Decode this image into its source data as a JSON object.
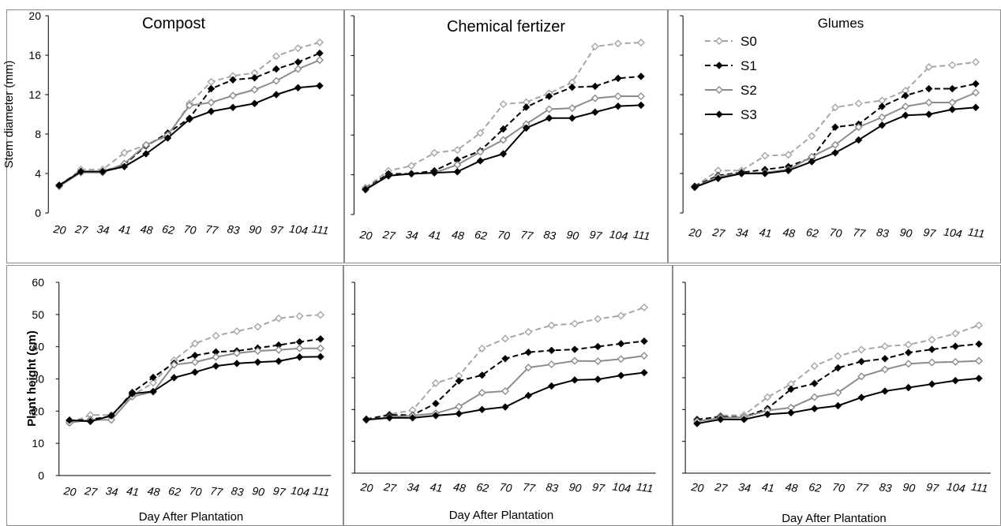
{
  "figure": {
    "x_axis_label": "Day After Plantation",
    "legend": [
      {
        "name": "S0",
        "color": "#a6a6a6",
        "dash": true,
        "marker": "diamond-open"
      },
      {
        "name": "S1",
        "color": "#000000",
        "dash": true,
        "marker": "diamond"
      },
      {
        "name": "S2",
        "color": "#8c8c8c",
        "dash": false,
        "marker": "diamond-open"
      },
      {
        "name": "S3",
        "color": "#000000",
        "dash": false,
        "marker": "diamond"
      }
    ]
  },
  "chart_data": [
    {
      "type": "line",
      "title": "Compost",
      "xlabel": "",
      "ylabel": "Stem diameter (mm)",
      "ylim": [
        0,
        20
      ],
      "yticks": [
        0,
        4,
        8,
        12,
        16,
        20
      ],
      "categories": [
        "20",
        "27",
        "34",
        "41",
        "48",
        "62",
        "70",
        "77",
        "83",
        "90",
        "97",
        "104",
        "111"
      ],
      "series": [
        {
          "name": "S0",
          "values": [
            2.8,
            4.4,
            4.4,
            6.1,
            6.9,
            7.8,
            11.1,
            13.3,
            13.9,
            14.2,
            15.9,
            16.7,
            17.3
          ]
        },
        {
          "name": "S1",
          "values": [
            2.8,
            4.2,
            4.2,
            4.9,
            6.8,
            8.1,
            9.6,
            12.6,
            13.5,
            13.7,
            14.6,
            15.3,
            16.2
          ]
        },
        {
          "name": "S2",
          "values": [
            2.7,
            4.1,
            4.1,
            5.0,
            6.9,
            7.9,
            10.9,
            11.2,
            11.9,
            12.5,
            13.4,
            14.6,
            15.5
          ]
        },
        {
          "name": "S3",
          "values": [
            2.8,
            4.2,
            4.2,
            4.7,
            6.0,
            7.6,
            9.5,
            10.3,
            10.7,
            11.1,
            12.0,
            12.7,
            12.9
          ]
        }
      ]
    },
    {
      "type": "line",
      "title": "Chemical fertizer",
      "xlabel": "",
      "ylabel": "",
      "ylim": [
        0,
        20
      ],
      "yticks": [
        0,
        4,
        8,
        12,
        16,
        20
      ],
      "categories": [
        "20",
        "27",
        "34",
        "41",
        "48",
        "62",
        "70",
        "77",
        "83",
        "90",
        "97",
        "104",
        "111"
      ],
      "series": [
        {
          "name": "S0",
          "values": [
            2.7,
            4.4,
            4.9,
            6.2,
            6.5,
            8.2,
            11.1,
            11.3,
            12.2,
            13.3,
            16.9,
            17.2,
            17.3
          ]
        },
        {
          "name": "S1",
          "values": [
            2.6,
            4.1,
            4.1,
            4.4,
            5.5,
            6.4,
            8.6,
            10.8,
            11.9,
            12.8,
            12.9,
            13.7,
            13.9
          ]
        },
        {
          "name": "S2",
          "values": [
            2.6,
            3.9,
            4.1,
            4.2,
            5.0,
            6.3,
            7.5,
            9.1,
            10.6,
            10.7,
            11.7,
            11.9,
            11.9
          ]
        },
        {
          "name": "S3",
          "values": [
            2.5,
            3.9,
            4.1,
            4.2,
            4.3,
            5.4,
            6.1,
            8.7,
            9.7,
            9.7,
            10.3,
            10.9,
            11.0
          ]
        }
      ]
    },
    {
      "type": "line",
      "title": "Glumes",
      "xlabel": "",
      "ylabel": "",
      "ylim": [
        0,
        20
      ],
      "yticks": [
        0,
        4,
        8,
        12,
        16,
        20
      ],
      "categories": [
        "20",
        "27",
        "34",
        "41",
        "48",
        "62",
        "70",
        "77",
        "83",
        "90",
        "97",
        "104",
        "111"
      ],
      "series": [
        {
          "name": "S0",
          "values": [
            2.7,
            4.3,
            4.3,
            5.8,
            5.9,
            7.8,
            10.7,
            11.1,
            11.4,
            12.4,
            14.8,
            15.0,
            15.3
          ]
        },
        {
          "name": "S1",
          "values": [
            2.7,
            3.8,
            4.1,
            4.4,
            4.7,
            5.6,
            8.7,
            9.0,
            10.8,
            11.9,
            12.6,
            12.6,
            13.1
          ]
        },
        {
          "name": "S2",
          "values": [
            2.6,
            3.7,
            4.0,
            4.1,
            4.4,
            5.7,
            6.9,
            8.7,
            9.7,
            10.8,
            11.2,
            11.2,
            12.2
          ]
        },
        {
          "name": "S3",
          "values": [
            2.6,
            3.5,
            4.0,
            4.0,
            4.3,
            5.2,
            6.1,
            7.4,
            8.9,
            9.9,
            10.0,
            10.5,
            10.7
          ]
        }
      ]
    },
    {
      "type": "line",
      "title": "",
      "xlabel": "Day After Plantation",
      "ylabel": "Plant height (cm)",
      "ylim": [
        0,
        60
      ],
      "yticks": [
        0,
        10,
        20,
        30,
        40,
        50,
        60
      ],
      "categories": [
        "20",
        "27",
        "34",
        "41",
        "48",
        "62",
        "70",
        "77",
        "83",
        "90",
        "97",
        "104",
        "111"
      ],
      "series": [
        {
          "name": "S0",
          "values": [
            16.3,
            18.8,
            18.8,
            24.8,
            28.8,
            35.8,
            41.0,
            43.4,
            44.8,
            46.2,
            48.8,
            49.5,
            49.9
          ]
        },
        {
          "name": "S1",
          "values": [
            17.0,
            17.4,
            18.4,
            25.8,
            30.5,
            34.9,
            37.3,
            38.4,
            38.7,
            39.6,
            40.5,
            41.5,
            42.4
          ]
        },
        {
          "name": "S2",
          "values": [
            16.4,
            17.3,
            17.3,
            24.5,
            26.0,
            34.4,
            35.2,
            36.8,
            38.0,
            38.7,
            39.0,
            39.5,
            39.5
          ]
        },
        {
          "name": "S3",
          "values": [
            17.2,
            16.8,
            18.6,
            25.4,
            26.1,
            30.4,
            32.1,
            34.0,
            34.8,
            35.2,
            35.5,
            36.8,
            36.9
          ]
        }
      ]
    },
    {
      "type": "line",
      "title": "",
      "xlabel": "Day After Plantation",
      "ylabel": "",
      "ylim": [
        0,
        60
      ],
      "yticks": [
        0,
        10,
        20,
        30,
        40,
        50,
        60
      ],
      "categories": [
        "20",
        "27",
        "34",
        "41",
        "48",
        "62",
        "70",
        "77",
        "83",
        "90",
        "97",
        "104",
        "111"
      ],
      "series": [
        {
          "name": "S0",
          "values": [
            16.8,
            18.5,
            19.8,
            28.3,
            30.6,
            39.2,
            42.3,
            44.4,
            46.5,
            47.0,
            48.5,
            49.5,
            52.1
          ]
        },
        {
          "name": "S1",
          "values": [
            17.0,
            18.3,
            18.3,
            21.9,
            29.0,
            30.8,
            36.0,
            38.0,
            38.6,
            38.9,
            39.8,
            40.7,
            41.5
          ]
        },
        {
          "name": "S2",
          "values": [
            16.8,
            17.6,
            18.1,
            18.8,
            20.9,
            25.3,
            25.8,
            33.2,
            34.2,
            35.3,
            35.2,
            35.9,
            36.9
          ]
        },
        {
          "name": "S3",
          "values": [
            16.8,
            17.4,
            17.4,
            18.1,
            18.7,
            20.0,
            20.8,
            24.4,
            27.4,
            29.3,
            29.5,
            30.7,
            31.6
          ]
        }
      ]
    },
    {
      "type": "line",
      "title": "",
      "xlabel": "Day After Plantation",
      "ylabel": "",
      "ylim": [
        0,
        60
      ],
      "yticks": [
        0,
        10,
        20,
        30,
        40,
        50,
        60
      ],
      "categories": [
        "20",
        "27",
        "34",
        "41",
        "48",
        "62",
        "70",
        "77",
        "83",
        "90",
        "97",
        "104",
        "111"
      ],
      "series": [
        {
          "name": "S0",
          "values": [
            16.4,
            18.1,
            18.3,
            23.9,
            28.0,
            33.7,
            36.8,
            38.8,
            39.9,
            40.4,
            42.0,
            43.9,
            46.5
          ]
        },
        {
          "name": "S1",
          "values": [
            16.9,
            17.7,
            17.7,
            20.3,
            26.4,
            28.2,
            33.1,
            35.1,
            36.0,
            37.9,
            38.9,
            39.9,
            40.6
          ]
        },
        {
          "name": "S2",
          "values": [
            16.3,
            17.4,
            17.6,
            19.7,
            20.6,
            23.9,
            25.3,
            30.4,
            32.6,
            34.4,
            34.8,
            35.0,
            35.3
          ]
        },
        {
          "name": "S3",
          "values": [
            15.6,
            16.9,
            16.9,
            18.5,
            19.0,
            20.3,
            21.2,
            23.8,
            25.8,
            26.9,
            28.0,
            29.1,
            29.8
          ]
        }
      ]
    }
  ]
}
